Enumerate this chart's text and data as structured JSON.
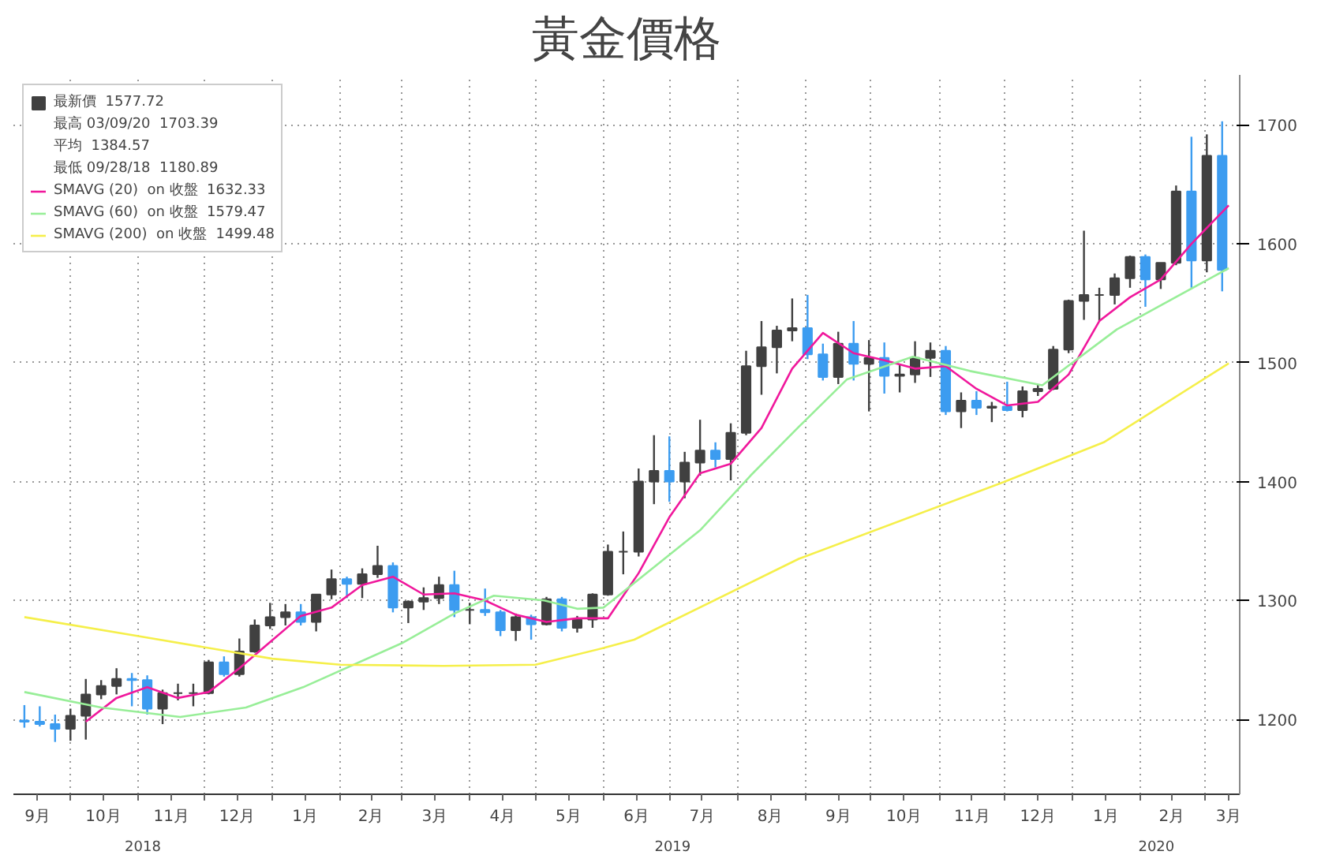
{
  "chart_data": {
    "type": "candlestick",
    "title": "黃金價格",
    "series": [
      {
        "name": "最新價  1577.72",
        "color": "#404040",
        "x": [
          "2018-09-10",
          "2018-09-17",
          "2018-09-24",
          "2018-10-01",
          "2018-10-08",
          "2018-10-15",
          "2018-10-22",
          "2018-10-29",
          "2018-11-05",
          "2018-11-12",
          "2018-11-19",
          "2018-11-26",
          "2018-12-03",
          "2018-12-10",
          "2018-12-17",
          "2018-12-24",
          "2018-12-31",
          "2019-01-07",
          "2019-01-14",
          "2019-01-21",
          "2019-01-28",
          "2019-02-04",
          "2019-02-11",
          "2019-02-18",
          "2019-02-25",
          "2019-03-04",
          "2019-03-11",
          "2019-03-18",
          "2019-03-25",
          "2019-04-01",
          "2019-04-08",
          "2019-04-15",
          "2019-04-22",
          "2019-04-29",
          "2019-05-06",
          "2019-05-13",
          "2019-05-20",
          "2019-05-27",
          "2019-06-03",
          "2019-06-10",
          "2019-06-17",
          "2019-06-24",
          "2019-07-01",
          "2019-07-08",
          "2019-07-15",
          "2019-07-22",
          "2019-07-29",
          "2019-08-05",
          "2019-08-12",
          "2019-08-19",
          "2019-08-26",
          "2019-09-02",
          "2019-09-09",
          "2019-09-16",
          "2019-09-23",
          "2019-09-30",
          "2019-10-07",
          "2019-10-14",
          "2019-10-21",
          "2019-10-28",
          "2019-11-04",
          "2019-11-11",
          "2019-11-18",
          "2019-11-25",
          "2019-12-02",
          "2019-12-09",
          "2019-12-16",
          "2019-12-23",
          "2019-12-30",
          "2020-01-06",
          "2020-01-13",
          "2020-01-20",
          "2020-01-27",
          "2020-02-03",
          "2020-02-10",
          "2020-02-17",
          "2020-02-24",
          "2020-03-02",
          "2020-03-09"
        ],
        "ohlc": [
          [
            1199,
            1212,
            1193,
            1198
          ],
          [
            1198,
            1211,
            1194,
            1196
          ],
          [
            1196,
            1204,
            1181,
            1192
          ],
          [
            1192,
            1209,
            1182,
            1203
          ],
          [
            1203,
            1234,
            1183,
            1221
          ],
          [
            1221,
            1233,
            1217,
            1228
          ],
          [
            1228,
            1243,
            1221,
            1234
          ],
          [
            1234,
            1239,
            1211,
            1233
          ],
          [
            1233,
            1237,
            1204,
            1209
          ],
          [
            1209,
            1225,
            1196,
            1222
          ],
          [
            1222,
            1230,
            1216,
            1222
          ],
          [
            1222,
            1230,
            1211,
            1222
          ],
          [
            1222,
            1250,
            1221,
            1248
          ],
          [
            1248,
            1253,
            1236,
            1238
          ],
          [
            1238,
            1268,
            1236,
            1257
          ],
          [
            1257,
            1284,
            1256,
            1279
          ],
          [
            1279,
            1298,
            1276,
            1286
          ],
          [
            1286,
            1297,
            1279,
            1290
          ],
          [
            1290,
            1297,
            1279,
            1282
          ],
          [
            1282,
            1305,
            1274,
            1305
          ],
          [
            1305,
            1326,
            1301,
            1318
          ],
          [
            1318,
            1320,
            1302,
            1314
          ],
          [
            1314,
            1327,
            1302,
            1322
          ],
          [
            1322,
            1346,
            1319,
            1329
          ],
          [
            1329,
            1332,
            1290,
            1294
          ],
          [
            1294,
            1300,
            1281,
            1299
          ],
          [
            1299,
            1311,
            1292,
            1302
          ],
          [
            1302,
            1320,
            1297,
            1313
          ],
          [
            1313,
            1325,
            1286,
            1292
          ],
          [
            1292,
            1298,
            1280,
            1292
          ],
          [
            1292,
            1310,
            1287,
            1290
          ],
          [
            1290,
            1292,
            1270,
            1275
          ],
          [
            1275,
            1289,
            1266,
            1286
          ],
          [
            1286,
            1288,
            1267,
            1280
          ],
          [
            1280,
            1303,
            1279,
            1301
          ],
          [
            1301,
            1303,
            1274,
            1277
          ],
          [
            1277,
            1287,
            1273,
            1284
          ],
          [
            1284,
            1306,
            1277,
            1305
          ],
          [
            1305,
            1347,
            1304,
            1341
          ],
          [
            1341,
            1358,
            1322,
            1341
          ],
          [
            1341,
            1411,
            1337,
            1400
          ],
          [
            1400,
            1439,
            1381,
            1409
          ],
          [
            1409,
            1438,
            1383,
            1400
          ],
          [
            1400,
            1425,
            1386,
            1416
          ],
          [
            1416,
            1452,
            1405,
            1426
          ],
          [
            1426,
            1433,
            1412,
            1419
          ],
          [
            1419,
            1449,
            1401,
            1441
          ],
          [
            1441,
            1510,
            1439,
            1497
          ],
          [
            1497,
            1535,
            1473,
            1513
          ],
          [
            1513,
            1531,
            1491,
            1527
          ],
          [
            1527,
            1554,
            1518,
            1529
          ],
          [
            1529,
            1557,
            1503,
            1507
          ],
          [
            1507,
            1516,
            1485,
            1488
          ],
          [
            1488,
            1526,
            1482,
            1516
          ],
          [
            1516,
            1535,
            1485,
            1499
          ],
          [
            1499,
            1519,
            1459,
            1504
          ],
          [
            1504,
            1517,
            1474,
            1489
          ],
          [
            1489,
            1499,
            1475,
            1490
          ],
          [
            1490,
            1518,
            1483,
            1504
          ],
          [
            1504,
            1517,
            1488,
            1510
          ],
          [
            1510,
            1514,
            1456,
            1459
          ],
          [
            1459,
            1475,
            1445,
            1468
          ],
          [
            1468,
            1476,
            1456,
            1462
          ],
          [
            1462,
            1467,
            1450,
            1463
          ],
          [
            1463,
            1484,
            1459,
            1460
          ],
          [
            1460,
            1480,
            1454,
            1476
          ],
          [
            1476,
            1482,
            1472,
            1478
          ],
          [
            1478,
            1514,
            1477,
            1511
          ],
          [
            1511,
            1553,
            1508,
            1552
          ],
          [
            1552,
            1611,
            1536,
            1557
          ],
          [
            1557,
            1563,
            1535,
            1557
          ],
          [
            1557,
            1575,
            1549,
            1571
          ],
          [
            1571,
            1590,
            1563,
            1589
          ],
          [
            1589,
            1591,
            1547,
            1570
          ],
          [
            1570,
            1584,
            1562,
            1584
          ],
          [
            1584,
            1649,
            1582,
            1644
          ],
          [
            1644,
            1690,
            1563,
            1586
          ],
          [
            1586,
            1692,
            1576,
            1674
          ],
          [
            1674,
            1703,
            1560,
            1578
          ]
        ],
        "colors": [
          "#3c9cf0",
          "#3c9cf0",
          "#3c9cf0",
          "#404040",
          "#404040",
          "#404040",
          "#404040",
          "#3c9cf0",
          "#3c9cf0",
          "#404040",
          "#404040",
          "#404040",
          "#404040",
          "#3c9cf0",
          "#404040",
          "#404040",
          "#404040",
          "#404040",
          "#3c9cf0",
          "#404040",
          "#404040",
          "#3c9cf0",
          "#404040",
          "#404040",
          "#3c9cf0",
          "#404040",
          "#404040",
          "#404040",
          "#3c9cf0",
          "#404040",
          "#3c9cf0",
          "#3c9cf0",
          "#404040",
          "#3c9cf0",
          "#404040",
          "#3c9cf0",
          "#404040",
          "#404040",
          "#404040",
          "#404040",
          "#404040",
          "#404040",
          "#3c9cf0",
          "#404040",
          "#404040",
          "#3c9cf0",
          "#404040",
          "#404040",
          "#404040",
          "#404040",
          "#404040",
          "#3c9cf0",
          "#3c9cf0",
          "#404040",
          "#3c9cf0",
          "#404040",
          "#3c9cf0",
          "#404040",
          "#404040",
          "#404040",
          "#3c9cf0",
          "#404040",
          "#3c9cf0",
          "#404040",
          "#3c9cf0",
          "#404040",
          "#404040",
          "#404040",
          "#404040",
          "#404040",
          "#404040",
          "#404040",
          "#404040",
          "#3c9cf0",
          "#404040",
          "#404040",
          "#3c9cf0",
          "#404040",
          "#3c9cf0"
        ]
      },
      {
        "type": "line",
        "name": "SMAVG (20)  on 收盤  1632.33",
        "color": "#f0189c",
        "x": [
          "2018-10-08",
          "2018-10-22",
          "2018-11-05",
          "2018-11-19",
          "2018-12-03",
          "2018-12-17",
          "2018-12-31",
          "2019-01-14",
          "2019-01-28",
          "2019-02-11",
          "2019-02-25",
          "2019-03-11",
          "2019-03-25",
          "2019-04-08",
          "2019-04-22",
          "2019-05-06",
          "2019-05-20",
          "2019-06-03",
          "2019-06-17",
          "2019-07-01",
          "2019-07-15",
          "2019-07-29",
          "2019-08-12",
          "2019-08-26",
          "2019-09-09",
          "2019-09-23",
          "2019-10-07",
          "2019-10-21",
          "2019-11-04",
          "2019-11-18",
          "2019-12-02",
          "2019-12-16",
          "2019-12-30",
          "2020-01-13",
          "2020-01-27",
          "2020-02-10",
          "2020-02-24",
          "2020-03-12"
        ],
        "values": [
          1198,
          1218,
          1227,
          1218,
          1223,
          1243,
          1265,
          1287,
          1294,
          1313,
          1320,
          1305,
          1306,
          1300,
          1288,
          1282,
          1285,
          1285,
          1323,
          1370,
          1407,
          1415,
          1445,
          1495,
          1525,
          1508,
          1502,
          1495,
          1497,
          1478,
          1464,
          1467,
          1490,
          1535,
          1555,
          1570,
          1600,
          1632.33
        ]
      },
      {
        "type": "line",
        "name": "SMAVG (60)  on 收盤  1579.47",
        "color": "#98ee98",
        "x": [
          "2018-09-10",
          "2018-10-15",
          "2018-11-20",
          "2018-12-20",
          "2019-01-15",
          "2019-03-01",
          "2019-03-25",
          "2019-04-12",
          "2019-05-05",
          "2019-05-20",
          "2019-06-01",
          "2019-07-15",
          "2019-08-07",
          "2019-08-29",
          "2019-09-20",
          "2019-10-20",
          "2019-11-15",
          "2019-12-18",
          "2020-01-21",
          "2020-03-12"
        ],
        "values": [
          1223,
          1210,
          1202,
          1210,
          1227,
          1264,
          1289,
          1304,
          1300,
          1293,
          1294,
          1359,
          1405,
          1446,
          1486,
          1505,
          1493,
          1481,
          1528,
          1579.47
        ]
      },
      {
        "type": "line",
        "name": "SMAVG (200)  on 收盤  1499.48",
        "color": "#f5ef4a",
        "x": [
          "2018-09-10",
          "2018-11-01",
          "2019-01-01",
          "2019-02-01",
          "2019-03-20",
          "2019-05-01",
          "2019-06-01",
          "2019-06-15",
          "2019-08-29",
          "2019-12-01",
          "2020-01-15",
          "2020-03-12"
        ],
        "values": [
          1286,
          1270,
          1251,
          1246,
          1245,
          1246,
          1260,
          1267,
          1335,
          1400,
          1433,
          1499.48
        ]
      }
    ],
    "annotations": [
      "最高 03/09/20  1703.39",
      "平均  1384.57",
      "最低 09/28/18  1180.89",
      "2018",
      "2019",
      "2020"
    ],
    "xlim": [
      "2018-09-05",
      "2020-03-17"
    ],
    "xticks": [
      {
        "value": "2018-09-16",
        "label": "9月"
      },
      {
        "value": "2018-10-01",
        "label": null
      },
      {
        "value": "2018-10-16",
        "label": "10月"
      },
      {
        "value": "2018-11-01",
        "label": null
      },
      {
        "value": "2018-11-16",
        "label": "11月"
      },
      {
        "value": "2018-12-01",
        "label": null
      },
      {
        "value": "2018-12-16",
        "label": "12月"
      },
      {
        "value": "2019-01-01",
        "label": null
      },
      {
        "value": "2019-01-16",
        "label": "1月"
      },
      {
        "value": "2019-02-01",
        "label": null
      },
      {
        "value": "2019-02-15",
        "label": "2月"
      },
      {
        "value": "2019-03-01",
        "label": null
      },
      {
        "value": "2019-03-16",
        "label": "3月"
      },
      {
        "value": "2019-04-01",
        "label": null
      },
      {
        "value": "2019-04-16",
        "label": "4月"
      },
      {
        "value": "2019-05-01",
        "label": null
      },
      {
        "value": "2019-05-16",
        "label": "5月"
      },
      {
        "value": "2019-06-01",
        "label": null
      },
      {
        "value": "2019-06-16",
        "label": "6月"
      },
      {
        "value": "2019-07-01",
        "label": null
      },
      {
        "value": "2019-07-16",
        "label": "7月"
      },
      {
        "value": "2019-08-01",
        "label": null
      },
      {
        "value": "2019-08-16",
        "label": "8月"
      },
      {
        "value": "2019-09-01",
        "label": null
      },
      {
        "value": "2019-09-16",
        "label": "9月"
      },
      {
        "value": "2019-10-01",
        "label": null
      },
      {
        "value": "2019-10-16",
        "label": "10月"
      },
      {
        "value": "2019-11-01",
        "label": null
      },
      {
        "value": "2019-11-16",
        "label": "11月"
      },
      {
        "value": "2019-12-01",
        "label": null
      },
      {
        "value": "2019-12-16",
        "label": "12月"
      },
      {
        "value": "2020-01-01",
        "label": null
      },
      {
        "value": "2020-01-16",
        "label": "1月"
      },
      {
        "value": "2020-02-01",
        "label": null
      },
      {
        "value": "2020-02-15",
        "label": "2月"
      },
      {
        "value": "2020-03-01",
        "label": null
      },
      {
        "value": "2020-03-12",
        "label": "3月"
      }
    ],
    "ylim": [
      1137,
      1742
    ],
    "yticks": [
      1200,
      1300,
      1400,
      1500,
      1600,
      1700
    ],
    "grid": true,
    "legend": "top left"
  }
}
